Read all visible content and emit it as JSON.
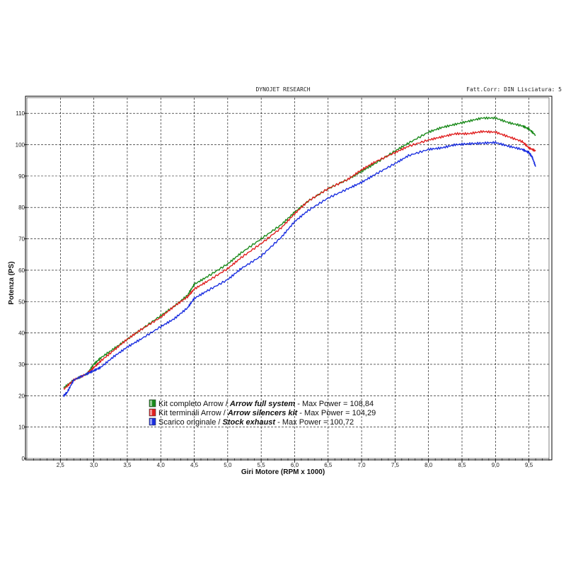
{
  "header": {
    "title": "DYNOJET RESEARCH",
    "right": "Fatt.Corr: DIN  Lisciatura: 5"
  },
  "chart_data": {
    "type": "line",
    "xlabel": "Giri Motore (RPM x 1000)",
    "ylabel": "Potenza (PS)",
    "xlim": [
      2.0,
      9.8
    ],
    "ylim": [
      0,
      115
    ],
    "x_ticks": [
      "2,5",
      "3,0",
      "3,5",
      "4,0",
      "4,5",
      "5,0",
      "5,5",
      "6,0",
      "6,5",
      "7,0",
      "7,5",
      "8,0",
      "8,5",
      "9,0",
      "9,5"
    ],
    "y_ticks": [
      "0",
      "10",
      "20",
      "30",
      "40",
      "50",
      "60",
      "70",
      "80",
      "90",
      "100",
      "110"
    ],
    "grid": true,
    "legend_position": "bottom-center",
    "series": [
      {
        "name": "Kit completo Arrow",
        "name_en": "Arrow full system",
        "max_label": "Max Power = 108,84",
        "color": "#1a8a1a",
        "x": [
          2.55,
          2.7,
          2.9,
          3.0,
          3.1,
          3.3,
          3.5,
          3.7,
          4.0,
          4.2,
          4.4,
          4.5,
          4.7,
          5.0,
          5.2,
          5.5,
          5.8,
          6.0,
          6.2,
          6.5,
          6.8,
          7.0,
          7.2,
          7.5,
          7.7,
          8.0,
          8.2,
          8.4,
          8.6,
          8.8,
          9.0,
          9.2,
          9.4,
          9.5,
          9.6
        ],
        "y": [
          22.5,
          25,
          27,
          30,
          32,
          35,
          38,
          41,
          45.5,
          48.5,
          52,
          55.5,
          58,
          62,
          65.5,
          70,
          74.5,
          78.5,
          82,
          86,
          89,
          91.5,
          94,
          98,
          100.5,
          104,
          105.5,
          106.5,
          107.5,
          108.5,
          108.5,
          107,
          106,
          105,
          103
        ]
      },
      {
        "name": "Kit terminali Arrow",
        "name_en": "Arrow silencers kit",
        "max_label": "Max Power = 104,29",
        "color": "#e02020",
        "x": [
          2.55,
          2.7,
          2.9,
          3.0,
          3.1,
          3.3,
          3.5,
          3.7,
          4.0,
          4.2,
          4.4,
          4.5,
          4.7,
          5.0,
          5.2,
          5.5,
          5.8,
          6.0,
          6.2,
          6.5,
          6.8,
          7.0,
          7.2,
          7.5,
          7.7,
          8.0,
          8.2,
          8.4,
          8.6,
          8.8,
          9.0,
          9.2,
          9.4,
          9.5,
          9.6
        ],
        "y": [
          22,
          25,
          27,
          29,
          31,
          34.5,
          38,
          41,
          45,
          48.5,
          51.5,
          54,
          56.5,
          60.5,
          64,
          68.5,
          73.5,
          78,
          82,
          86,
          89,
          92,
          94.5,
          97.5,
          99.5,
          101.5,
          102.5,
          103.5,
          103.5,
          104.2,
          104,
          102.5,
          101,
          99,
          98
        ]
      },
      {
        "name": "Scarico originale",
        "name_en": "Stock exhaust",
        "max_label": "Max Power = 100,72",
        "color": "#1a2ee0",
        "x": [
          2.55,
          2.6,
          2.7,
          2.9,
          3.0,
          3.1,
          3.3,
          3.5,
          3.7,
          4.0,
          4.2,
          4.4,
          4.5,
          4.7,
          5.0,
          5.2,
          5.5,
          5.8,
          6.0,
          6.2,
          6.5,
          6.8,
          7.0,
          7.2,
          7.5,
          7.7,
          8.0,
          8.2,
          8.4,
          8.6,
          8.8,
          9.0,
          9.2,
          9.4,
          9.5,
          9.55,
          9.6
        ],
        "y": [
          20,
          21,
          25,
          27,
          28,
          29,
          32.5,
          35.5,
          38,
          42,
          44.5,
          48,
          51,
          53.5,
          57,
          60.5,
          64.5,
          70.5,
          75.5,
          79,
          83,
          86,
          88,
          90.5,
          94,
          96.5,
          98.5,
          99,
          100,
          100.3,
          100.5,
          100.7,
          99.5,
          98.5,
          97.5,
          96,
          93
        ]
      }
    ]
  }
}
